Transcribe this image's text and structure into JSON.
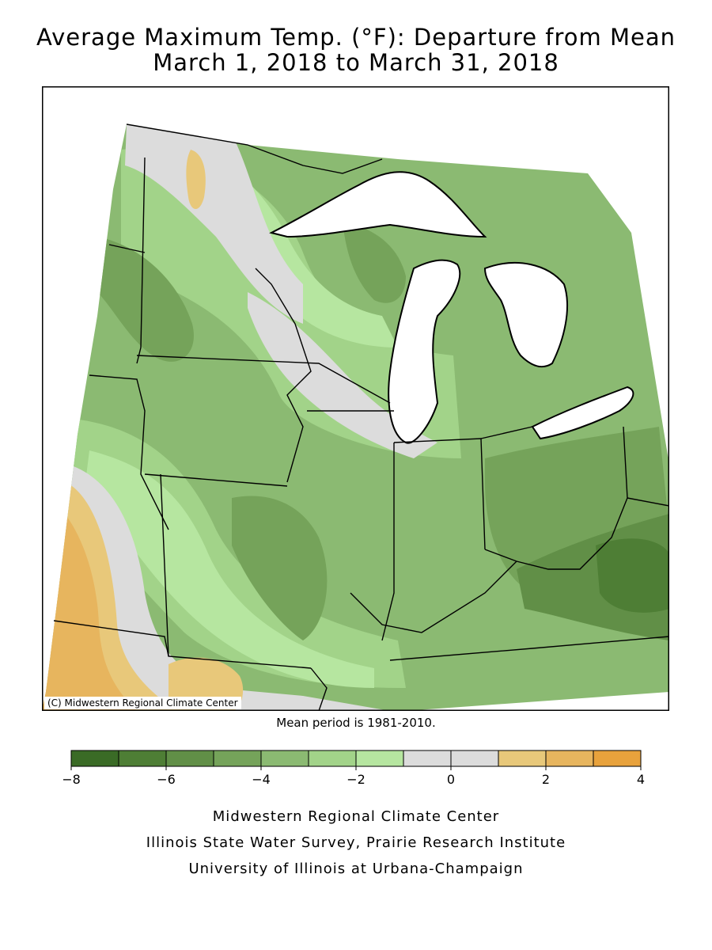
{
  "title": {
    "line1": "Average Maximum Temp. (°F): Departure from Mean",
    "line2": "March 1, 2018 to March 31, 2018"
  },
  "map": {
    "copyright": "(C) Midwestern Regional Climate Center",
    "colors": {
      "lake": "#ffffff",
      "border": "#000000"
    },
    "regions": [
      {
        "id": "southwest",
        "description": "Warm anomaly area",
        "value_range": "0 to 3"
      },
      {
        "id": "north-minnesota",
        "value_range": "0 to 2"
      },
      {
        "id": "west-virginia-kentucky",
        "value_range": "-7 to -6"
      }
    ]
  },
  "note": "Mean period is 1981-2010.",
  "legend": {
    "ticks": [
      "-8",
      "-6",
      "-4",
      "-2",
      "0",
      "2",
      "4"
    ],
    "bins": [
      {
        "from": -8,
        "to": -7,
        "color": "#3a6b26"
      },
      {
        "from": -7,
        "to": -6,
        "color": "#4e7e35"
      },
      {
        "from": -6,
        "to": -5,
        "color": "#618f47"
      },
      {
        "from": -5,
        "to": -4,
        "color": "#75a35a"
      },
      {
        "from": -4,
        "to": -3,
        "color": "#8bba72"
      },
      {
        "from": -3,
        "to": -2,
        "color": "#a2d389"
      },
      {
        "from": -2,
        "to": -1,
        "color": "#b6e6a0"
      },
      {
        "from": -1,
        "to": 0,
        "color": "#dcdcdc"
      },
      {
        "from": 0,
        "to": 1,
        "color": "#dcdcdc"
      },
      {
        "from": 1,
        "to": 2,
        "color": "#e8c87a"
      },
      {
        "from": 2,
        "to": 3,
        "color": "#e7b55e"
      },
      {
        "from": 3,
        "to": 4,
        "color": "#e8a23c"
      }
    ]
  },
  "credits": {
    "line1": "Midwestern Regional Climate Center",
    "line2": "Illinois State Water Survey, Prairie Research Institute",
    "line3": "University of Illinois at Urbana-Champaign"
  }
}
